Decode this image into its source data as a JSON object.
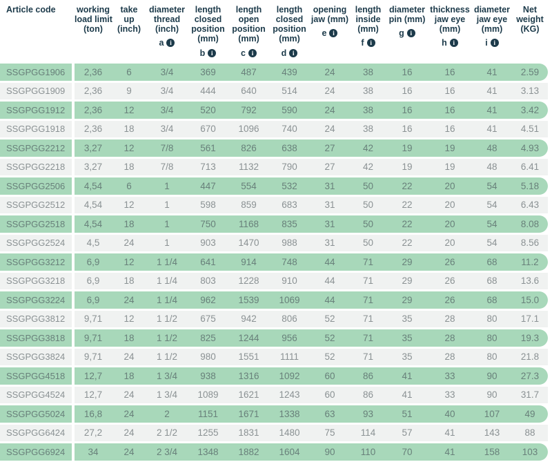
{
  "table": {
    "columns": [
      {
        "key": "article-code",
        "lines": [
          "Article code"
        ],
        "sub": null
      },
      {
        "key": "working-load-limit",
        "lines": [
          "working",
          "load limit",
          "(ton)"
        ],
        "sub": null
      },
      {
        "key": "take-up",
        "lines": [
          "take",
          "up",
          "(inch)"
        ],
        "sub": null
      },
      {
        "key": "diameter-thread",
        "lines": [
          "diameter",
          "thread",
          "(inch)"
        ],
        "sub": "a"
      },
      {
        "key": "length-closed-b",
        "lines": [
          "length",
          "closed",
          "position",
          "(mm)"
        ],
        "sub": "b"
      },
      {
        "key": "length-open-c",
        "lines": [
          "length",
          "open",
          "position",
          "(mm)"
        ],
        "sub": "c"
      },
      {
        "key": "length-closed-d",
        "lines": [
          "length",
          "closed",
          "position",
          "(mm)"
        ],
        "sub": "d"
      },
      {
        "key": "opening-jaw",
        "lines": [
          "opening",
          "jaw (mm)"
        ],
        "sub": "e"
      },
      {
        "key": "length-inside",
        "lines": [
          "length",
          "inside",
          "(mm)"
        ],
        "sub": "f"
      },
      {
        "key": "diameter-pin",
        "lines": [
          "diameter",
          "pin (mm)"
        ],
        "sub": "g"
      },
      {
        "key": "thickness-jaw-eye",
        "lines": [
          "thickness",
          "jaw eye",
          "(mm)"
        ],
        "sub": "h"
      },
      {
        "key": "diameter-jaw-eye",
        "lines": [
          "diameter",
          "jaw eye",
          "(mm)"
        ],
        "sub": "i"
      },
      {
        "key": "net-weight",
        "lines": [
          "Net",
          "weight",
          "(KG)"
        ],
        "sub": null
      }
    ],
    "rows": [
      [
        "SSGPGG1906",
        "2,36",
        "6",
        "3/4",
        "369",
        "487",
        "439",
        "24",
        "38",
        "16",
        "16",
        "41",
        "2.59"
      ],
      [
        "SSGPGG1909",
        "2,36",
        "9",
        "3/4",
        "444",
        "640",
        "514",
        "24",
        "38",
        "16",
        "16",
        "41",
        "3.13"
      ],
      [
        "SSGPGG1912",
        "2,36",
        "12",
        "3/4",
        "520",
        "792",
        "590",
        "24",
        "38",
        "16",
        "16",
        "41",
        "3.42"
      ],
      [
        "SSGPGG1918",
        "2,36",
        "18",
        "3/4",
        "670",
        "1096",
        "740",
        "24",
        "38",
        "16",
        "16",
        "41",
        "4.51"
      ],
      [
        "SSGPGG2212",
        "3,27",
        "12",
        "7/8",
        "561",
        "826",
        "638",
        "27",
        "42",
        "19",
        "19",
        "48",
        "4.93"
      ],
      [
        "SSGPGG2218",
        "3,27",
        "18",
        "7/8",
        "713",
        "1132",
        "790",
        "27",
        "42",
        "19",
        "19",
        "48",
        "6.41"
      ],
      [
        "SSGPGG2506",
        "4,54",
        "6",
        "1",
        "447",
        "554",
        "532",
        "31",
        "50",
        "22",
        "20",
        "54",
        "5.18"
      ],
      [
        "SSGPGG2512",
        "4,54",
        "12",
        "1",
        "598",
        "859",
        "683",
        "31",
        "50",
        "22",
        "20",
        "54",
        "6.43"
      ],
      [
        "SSGPGG2518",
        "4,54",
        "18",
        "1",
        "750",
        "1168",
        "835",
        "31",
        "50",
        "22",
        "20",
        "54",
        "8.08"
      ],
      [
        "SSGPGG2524",
        "4,5",
        "24",
        "1",
        "903",
        "1470",
        "988",
        "31",
        "50",
        "22",
        "20",
        "54",
        "8.56"
      ],
      [
        "SSGPGG3212",
        "6,9",
        "12",
        "1 1/4",
        "641",
        "914",
        "748",
        "44",
        "71",
        "29",
        "26",
        "68",
        "11.2"
      ],
      [
        "SSGPGG3218",
        "6,9",
        "18",
        "1 1/4",
        "803",
        "1228",
        "910",
        "44",
        "71",
        "29",
        "26",
        "68",
        "13.6"
      ],
      [
        "SSGPGG3224",
        "6,9",
        "24",
        "1 1/4",
        "962",
        "1539",
        "1069",
        "44",
        "71",
        "29",
        "26",
        "68",
        "15.0"
      ],
      [
        "SSGPGG3812",
        "9,71",
        "12",
        "1 1/2",
        "675",
        "942",
        "806",
        "52",
        "71",
        "35",
        "28",
        "80",
        "17.1"
      ],
      [
        "SSGPGG3818",
        "9,71",
        "18",
        "1 1/2",
        "825",
        "1244",
        "956",
        "52",
        "71",
        "35",
        "28",
        "80",
        "19.3"
      ],
      [
        "SSGPGG3824",
        "9,71",
        "24",
        "1 1/2",
        "980",
        "1551",
        "1111",
        "52",
        "71",
        "35",
        "28",
        "80",
        "21.8"
      ],
      [
        "SSGPGG4518",
        "12,7",
        "18",
        "1 3/4",
        "938",
        "1316",
        "1092",
        "60",
        "86",
        "41",
        "33",
        "90",
        "27.3"
      ],
      [
        "SSGPGG4524",
        "12,7",
        "24",
        "1 3/4",
        "1089",
        "1621",
        "1243",
        "60",
        "86",
        "41",
        "33",
        "90",
        "31.7"
      ],
      [
        "SSGPGG5024",
        "16,8",
        "24",
        "2",
        "1151",
        "1671",
        "1338",
        "63",
        "93",
        "51",
        "40",
        "107",
        "49"
      ],
      [
        "SSGPGG6424",
        "27,2",
        "24",
        "2 1/2",
        "1255",
        "1831",
        "1480",
        "75",
        "114",
        "57",
        "41",
        "143",
        "88"
      ],
      [
        "SSGPGG6924",
        "34",
        "24",
        "2 3/4",
        "1348",
        "1882",
        "1604",
        "90",
        "110",
        "70",
        "41",
        "158",
        "103"
      ]
    ]
  },
  "colors": {
    "row_green": "#a8d8ba",
    "row_gray": "#f0f2f1",
    "header_text": "#1c3a4a",
    "green_row_text": "#68807a",
    "gray_row_text": "#8a9193",
    "info_icon_bg": "#1c3a4a",
    "info_icon_text": "#ffffff"
  }
}
